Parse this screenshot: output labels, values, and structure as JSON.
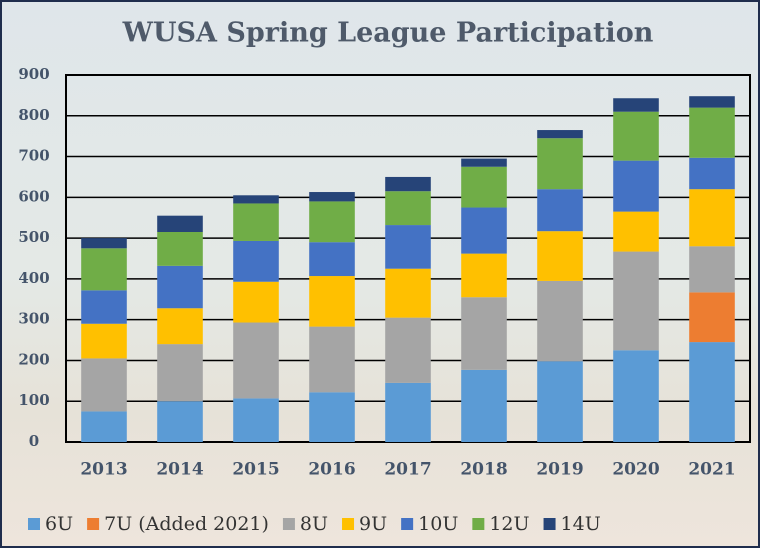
{
  "chart_data": {
    "type": "stacked_bar",
    "title": "WUSA Spring League Participation",
    "categories": [
      "2013",
      "2014",
      "2015",
      "2016",
      "2017",
      "2018",
      "2019",
      "2020",
      "2021"
    ],
    "series": [
      {
        "name": "6U",
        "color": "#5b9bd5",
        "values": [
          75,
          100,
          107,
          122,
          145,
          177,
          198,
          225,
          245
        ]
      },
      {
        "name": "7U (Added 2021)",
        "color": "#ed7d31",
        "values": [
          null,
          null,
          null,
          null,
          null,
          null,
          null,
          null,
          122
        ]
      },
      {
        "name": "8U",
        "color": "#a5a5a5",
        "values": [
          130,
          140,
          186,
          161,
          160,
          178,
          197,
          242,
          113
        ]
      },
      {
        "name": "9U",
        "color": "#ffc000",
        "values": [
          85,
          88,
          100,
          124,
          120,
          107,
          122,
          98,
          140
        ]
      },
      {
        "name": "10U",
        "color": "#4472c4",
        "values": [
          82,
          104,
          100,
          83,
          107,
          113,
          103,
          125,
          77
        ]
      },
      {
        "name": "12U",
        "color": "#70ad47",
        "values": [
          103,
          83,
          92,
          100,
          83,
          100,
          125,
          120,
          123
        ]
      },
      {
        "name": "14U",
        "color": "#264478",
        "values": [
          25,
          40,
          20,
          23,
          35,
          20,
          20,
          33,
          28
        ]
      }
    ],
    "ylim": [
      0,
      900
    ],
    "yticks": [
      0,
      100,
      200,
      300,
      400,
      500,
      600,
      700,
      800,
      900
    ],
    "grid": true
  }
}
